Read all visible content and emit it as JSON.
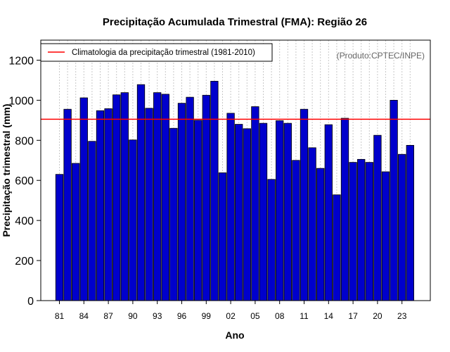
{
  "chart_data": {
    "type": "bar",
    "title": "Precipitação Acumulada Trimestral (FMA): Região 26",
    "xlabel": "Ano",
    "ylabel": "Precipitação trimestral (mm)",
    "ylim": [
      0,
      1300
    ],
    "yticks": [
      0,
      200,
      400,
      600,
      800,
      1000,
      1200
    ],
    "categories": [
      "81",
      "82",
      "83",
      "84",
      "85",
      "86",
      "87",
      "88",
      "89",
      "90",
      "91",
      "92",
      "93",
      "94",
      "95",
      "96",
      "97",
      "98",
      "99",
      "00",
      "01",
      "02",
      "03",
      "04",
      "05",
      "06",
      "07",
      "08",
      "09",
      "10",
      "11",
      "12",
      "13",
      "14",
      "15",
      "16",
      "17",
      "18",
      "19",
      "20",
      "21",
      "22",
      "23",
      "24"
    ],
    "xtick_labels": [
      "81",
      "84",
      "87",
      "90",
      "93",
      "96",
      "99",
      "02",
      "05",
      "08",
      "11",
      "14",
      "17",
      "20",
      "23"
    ],
    "values": [
      630,
      955,
      685,
      1012,
      795,
      948,
      958,
      1027,
      1038,
      802,
      1078,
      960,
      1038,
      1030,
      860,
      985,
      1015,
      900,
      1025,
      1095,
      638,
      935,
      880,
      858,
      968,
      885,
      605,
      898,
      885,
      700,
      955,
      763,
      660,
      878,
      528,
      910,
      690,
      705,
      690,
      825,
      643,
      1000,
      730,
      775
    ],
    "reference_line": {
      "value": 905,
      "color": "#ff0000",
      "label": "Climatologia da precipitação trimestral (1981-2010)"
    },
    "legend_position": "top-left",
    "annotation": "(Produto:CPTEC/INPE)",
    "bar_color": "#0000cc",
    "grid": "vertical-dotted"
  }
}
